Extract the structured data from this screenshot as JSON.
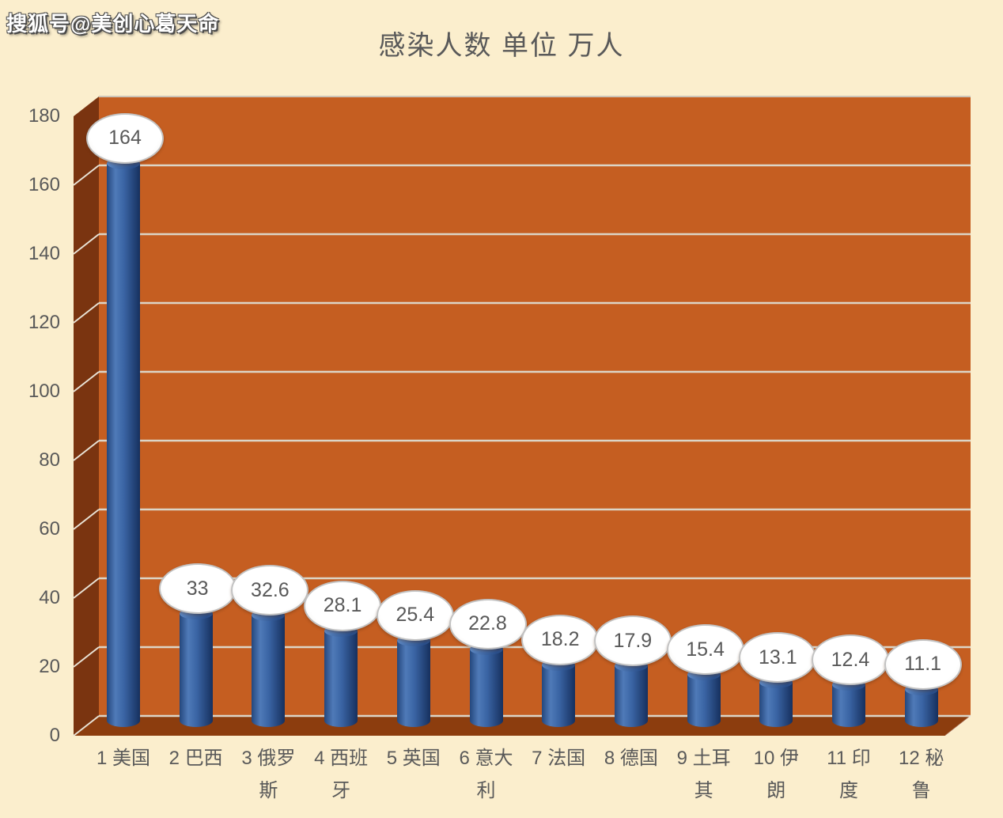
{
  "watermark": {
    "text": "搜狐号@美创心葛天命"
  },
  "chart_data": {
    "type": "bar",
    "style": "3d-cylinder",
    "title": "感染人数 单位 万人",
    "unit": "万人",
    "categories": [
      "1 美国",
      "2 巴西",
      "3 俄罗斯",
      "4 西班牙",
      "5 英国",
      "6 意大利",
      "7 法国",
      "8 德国",
      "9 土耳其",
      "10 伊朗",
      "11 印度",
      "12 秘鲁"
    ],
    "category_lines": [
      [
        "1 美国"
      ],
      [
        "2 巴西"
      ],
      [
        "3 俄罗",
        "斯"
      ],
      [
        "4 西班",
        "牙"
      ],
      [
        "5 英国"
      ],
      [
        "6 意大",
        "利"
      ],
      [
        "7 法国"
      ],
      [
        "8 德国"
      ],
      [
        "9 土耳",
        "其"
      ],
      [
        "10 伊",
        "朗"
      ],
      [
        "11 印",
        "度"
      ],
      [
        "12 秘",
        "鲁"
      ]
    ],
    "values": [
      164,
      33,
      32.6,
      28.1,
      25.4,
      22.8,
      18.2,
      17.9,
      15.4,
      13.1,
      12.4,
      11.1
    ],
    "value_labels": [
      "164",
      "33",
      "32.6",
      "28.1",
      "25.4",
      "22.8",
      "18.2",
      "17.9",
      "15.4",
      "13.1",
      "12.4",
      "11.1"
    ],
    "y_ticks": [
      0,
      20,
      40,
      60,
      80,
      100,
      120,
      140,
      160,
      180
    ],
    "ylim": [
      0,
      180
    ],
    "grid": true,
    "legend": false,
    "colors": {
      "background": "#FBEECD",
      "wall": "#C55E21",
      "side_wall": "#7A3410",
      "floor": "#8C3D0E",
      "gridline": "#DCD5C7",
      "tick_diagonal": "#E9E3D6",
      "top_edge": "#CCC5B8",
      "bar_gradient": [
        "#24477D",
        "#4F7AB8",
        "#3A64A4",
        "#16305E"
      ],
      "bar_cap_light": "#6490CB",
      "bar_cap_dark": "#2A4F8B",
      "callout_fill": "#FFFFFF",
      "callout_border": "#C2C2C2",
      "text": "#595959",
      "watermark_text": "#FFFFFF"
    }
  }
}
